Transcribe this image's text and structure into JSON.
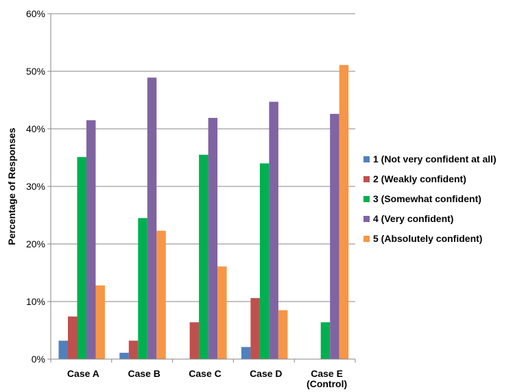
{
  "chart_data": {
    "type": "bar",
    "categories": [
      "Case A",
      "Case B",
      "Case C",
      "Case D",
      [
        "Case E",
        "(Control)"
      ]
    ],
    "series": [
      {
        "name": "1 (Not very confident at all)",
        "color": "#4f81bd",
        "values": [
          3.2,
          1.1,
          0,
          2.1,
          0
        ]
      },
      {
        "name": "2 (Weakly confident)",
        "color": "#c0504d",
        "values": [
          7.4,
          3.2,
          6.4,
          10.6,
          0
        ]
      },
      {
        "name": "3 (Somewhat confident)",
        "color": "#00b050",
        "values": [
          35.1,
          24.5,
          35.5,
          34.0,
          6.4
        ]
      },
      {
        "name": "4 (Very confident)",
        "color": "#8064a2",
        "values": [
          41.5,
          48.9,
          41.9,
          44.7,
          42.6
        ]
      },
      {
        "name": "5 (Absolutely confident)",
        "color": "#f79646",
        "values": [
          12.8,
          22.3,
          16.1,
          8.5,
          51.1
        ]
      }
    ],
    "ylabel": "Percentage of Responses",
    "xlabel": "",
    "ylim": [
      0,
      60
    ],
    "yticks": [
      "0%",
      "10%",
      "20%",
      "30%",
      "40%",
      "50%",
      "60%"
    ],
    "grid": true,
    "legend_position": "right"
  }
}
